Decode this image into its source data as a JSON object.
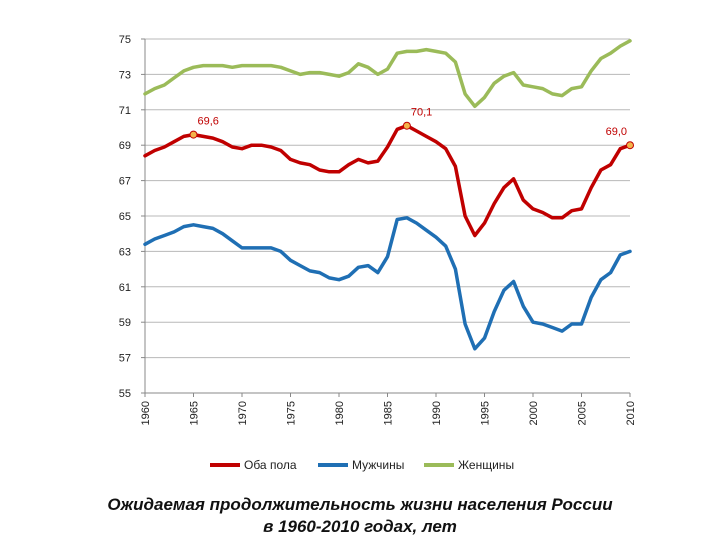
{
  "chart_data": {
    "type": "line",
    "title": "Ожидаемая продолжительность жизни населения России в 1960-2010 годах, лет",
    "caption_lines": [
      "Ожидаемая продолжительность жизни населения России",
      "в 1960-2010 годах, лет"
    ],
    "xlabel": "",
    "ylabel": "",
    "xlim": [
      1960,
      2010
    ],
    "ylim": [
      55,
      75
    ],
    "x_ticks": [
      1960,
      1965,
      1970,
      1975,
      1980,
      1985,
      1990,
      1995,
      2000,
      2005,
      2010
    ],
    "y_ticks": [
      55,
      57,
      59,
      61,
      63,
      65,
      67,
      69,
      71,
      73,
      75
    ],
    "grid": "horizontal",
    "legend_position": "bottom",
    "x": [
      1960,
      1961,
      1962,
      1963,
      1964,
      1965,
      1966,
      1967,
      1968,
      1969,
      1970,
      1971,
      1972,
      1973,
      1974,
      1975,
      1976,
      1977,
      1978,
      1979,
      1980,
      1981,
      1982,
      1983,
      1984,
      1985,
      1986,
      1987,
      1988,
      1989,
      1990,
      1991,
      1992,
      1993,
      1994,
      1995,
      1996,
      1997,
      1998,
      1999,
      2000,
      2001,
      2002,
      2003,
      2004,
      2005,
      2006,
      2007,
      2008,
      2009,
      2010
    ],
    "series": [
      {
        "name": "Оба пола",
        "color": "#c00000",
        "values": [
          68.4,
          68.7,
          68.9,
          69.2,
          69.5,
          69.6,
          69.5,
          69.4,
          69.2,
          68.9,
          68.8,
          69.0,
          69.0,
          68.9,
          68.7,
          68.2,
          68.0,
          67.9,
          67.6,
          67.5,
          67.5,
          67.9,
          68.2,
          68.0,
          68.1,
          68.9,
          69.9,
          70.1,
          69.8,
          69.5,
          69.2,
          68.8,
          67.8,
          65.0,
          63.9,
          64.6,
          65.7,
          66.6,
          67.1,
          65.9,
          65.4,
          65.2,
          64.9,
          64.9,
          65.3,
          65.4,
          66.6,
          67.6,
          67.9,
          68.8,
          69.0
        ]
      },
      {
        "name": "Мужчины",
        "color": "#1f6fb4",
        "values": [
          63.4,
          63.7,
          63.9,
          64.1,
          64.4,
          64.5,
          64.4,
          64.3,
          64.0,
          63.6,
          63.2,
          63.2,
          63.2,
          63.2,
          63.0,
          62.5,
          62.2,
          61.9,
          61.8,
          61.5,
          61.4,
          61.6,
          62.1,
          62.2,
          61.8,
          62.7,
          64.8,
          64.9,
          64.6,
          64.2,
          63.8,
          63.3,
          62.0,
          58.9,
          57.5,
          58.1,
          59.6,
          60.8,
          61.3,
          59.9,
          59.0,
          58.9,
          58.7,
          58.5,
          58.9,
          58.9,
          60.4,
          61.4,
          61.8,
          62.8,
          63.0
        ]
      },
      {
        "name": "Женщины",
        "color": "#9bbb59",
        "values": [
          71.9,
          72.2,
          72.4,
          72.8,
          73.2,
          73.4,
          73.5,
          73.5,
          73.5,
          73.4,
          73.5,
          73.5,
          73.5,
          73.5,
          73.4,
          73.2,
          73.0,
          73.1,
          73.1,
          73.0,
          72.9,
          73.1,
          73.6,
          73.4,
          73.0,
          73.3,
          74.2,
          74.3,
          74.3,
          74.4,
          74.3,
          74.2,
          73.7,
          71.9,
          71.2,
          71.7,
          72.5,
          72.9,
          73.1,
          72.4,
          72.3,
          72.2,
          71.9,
          71.8,
          72.2,
          72.3,
          73.2,
          73.9,
          74.2,
          74.6,
          74.9
        ]
      }
    ],
    "annotations": [
      {
        "x": 1965,
        "y": 69.6,
        "label": "69,6"
      },
      {
        "x": 1987,
        "y": 70.1,
        "label": "70,1"
      },
      {
        "x": 2010,
        "y": 69.0,
        "label": "69,0"
      }
    ]
  }
}
